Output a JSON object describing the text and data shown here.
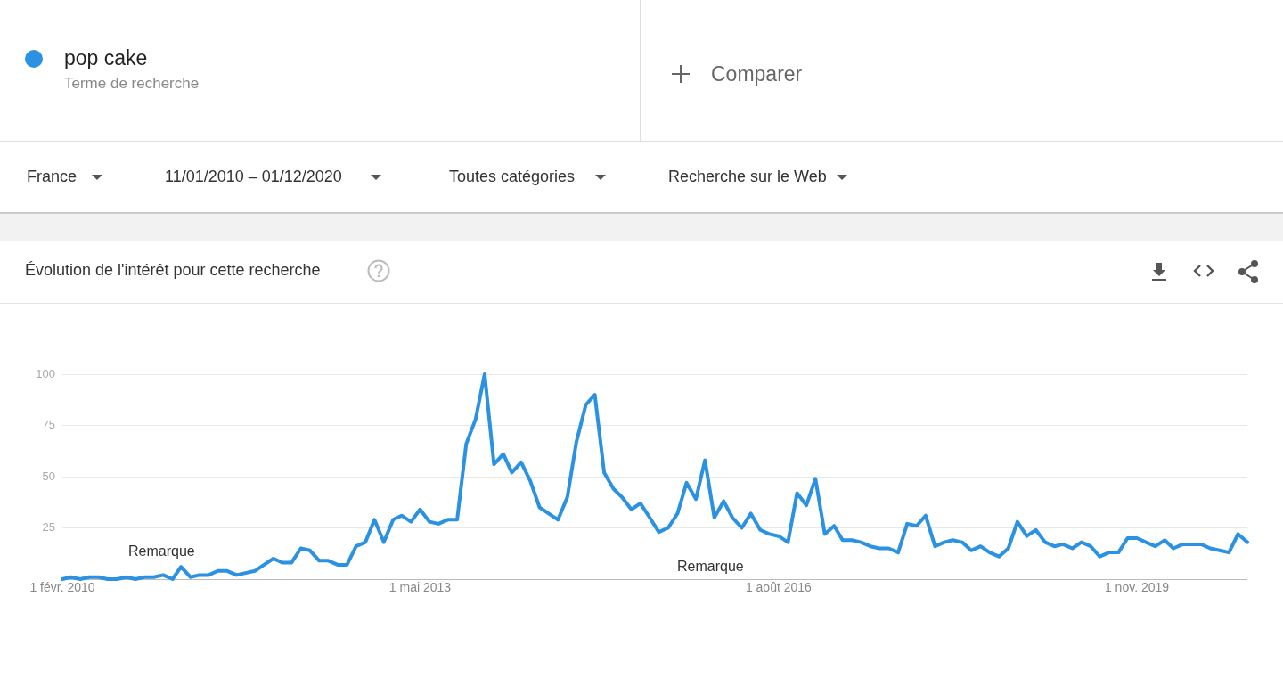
{
  "chart_data": {
    "type": "line",
    "title": "Évolution de l'intérêt pour cette recherche",
    "annotations": [
      "Terme de recherche",
      "Comparer",
      "France",
      "11/01/2010 – 01/12/2020",
      "Toutes catégories",
      "Recherche sur le Web",
      "Remarque",
      "Remarque"
    ],
    "x": [
      "2010-02",
      "2010-03",
      "2010-04",
      "2010-05",
      "2010-06",
      "2010-07",
      "2010-08",
      "2010-09",
      "2010-10",
      "2010-11",
      "2010-12",
      "2011-01",
      "2011-02",
      "2011-03",
      "2011-04",
      "2011-05",
      "2011-06",
      "2011-07",
      "2011-08",
      "2011-09",
      "2011-10",
      "2011-11",
      "2011-12",
      "2012-01",
      "2012-02",
      "2012-03",
      "2012-04",
      "2012-05",
      "2012-06",
      "2012-07",
      "2012-08",
      "2012-09",
      "2012-10",
      "2012-11",
      "2012-12",
      "2013-01",
      "2013-02",
      "2013-03",
      "2013-04",
      "2013-05",
      "2013-06",
      "2013-07",
      "2013-08",
      "2013-09",
      "2013-10",
      "2013-11",
      "2013-12",
      "2014-01",
      "2014-02",
      "2014-03",
      "2014-04",
      "2014-05",
      "2014-06",
      "2014-07",
      "2014-08",
      "2014-09",
      "2014-10",
      "2014-11",
      "2014-12",
      "2015-01",
      "2015-02",
      "2015-03",
      "2015-04",
      "2015-05",
      "2015-06",
      "2015-07",
      "2015-08",
      "2015-09",
      "2015-10",
      "2015-11",
      "2015-12",
      "2016-01",
      "2016-02",
      "2016-03",
      "2016-04",
      "2016-05",
      "2016-06",
      "2016-07",
      "2016-08",
      "2016-09",
      "2016-10",
      "2016-11",
      "2016-12",
      "2017-01",
      "2017-02",
      "2017-03",
      "2017-04",
      "2017-05",
      "2017-06",
      "2017-07",
      "2017-08",
      "2017-09",
      "2017-10",
      "2017-11",
      "2017-12",
      "2018-01",
      "2018-02",
      "2018-03",
      "2018-04",
      "2018-05",
      "2018-06",
      "2018-07",
      "2018-08",
      "2018-09",
      "2018-10",
      "2018-11",
      "2018-12",
      "2019-01",
      "2019-02",
      "2019-03",
      "2019-04",
      "2019-05",
      "2019-06",
      "2019-07",
      "2019-08",
      "2019-09",
      "2019-10",
      "2019-11",
      "2019-12",
      "2020-01",
      "2020-02",
      "2020-03",
      "2020-04",
      "2020-05",
      "2020-06",
      "2020-07",
      "2020-08",
      "2020-09",
      "2020-10",
      "2020-11"
    ],
    "series": [
      {
        "name": "pop cake",
        "color": "#2b91e2",
        "values": [
          0,
          1,
          0,
          1,
          1,
          0,
          0,
          1,
          0,
          1,
          1,
          2,
          0,
          6,
          1,
          2,
          2,
          4,
          4,
          2,
          3,
          4,
          7,
          10,
          8,
          8,
          15,
          14,
          9,
          9,
          7,
          7,
          16,
          18,
          29,
          18,
          29,
          31,
          28,
          34,
          28,
          27,
          29,
          29,
          66,
          78,
          100,
          56,
          61,
          52,
          57,
          48,
          35,
          32,
          29,
          40,
          67,
          85,
          90,
          52,
          44,
          40,
          34,
          37,
          30,
          23,
          25,
          32,
          47,
          39,
          58,
          30,
          38,
          30,
          25,
          32,
          24,
          22,
          21,
          18,
          42,
          36,
          49,
          22,
          26,
          19,
          19,
          18,
          16,
          15,
          15,
          13,
          27,
          26,
          31,
          16,
          18,
          19,
          18,
          14,
          16,
          13,
          11,
          15,
          28,
          21,
          24,
          18,
          16,
          17,
          15,
          18,
          16,
          11,
          13,
          13,
          20,
          20,
          18,
          16,
          19,
          15,
          17,
          17,
          17,
          15,
          14,
          13,
          22,
          18
        ]
      }
    ],
    "xlim": [
      "2010-02",
      "2020-11"
    ],
    "xticks": [
      {
        "value": "2010-02",
        "label": "1 févr. 2010"
      },
      {
        "value": "2013-05",
        "label": "1 mai 2013"
      },
      {
        "value": "2016-08",
        "label": "1 août 2016"
      },
      {
        "value": "2019-11",
        "label": "1 nov. 2019"
      }
    ],
    "ylim": [
      0,
      100
    ],
    "yticks": [
      {
        "value": 0,
        "label": null
      },
      25,
      50,
      75,
      100
    ],
    "grid": "y",
    "legend": "top left",
    "marker": "none",
    "line_style": "solid"
  }
}
